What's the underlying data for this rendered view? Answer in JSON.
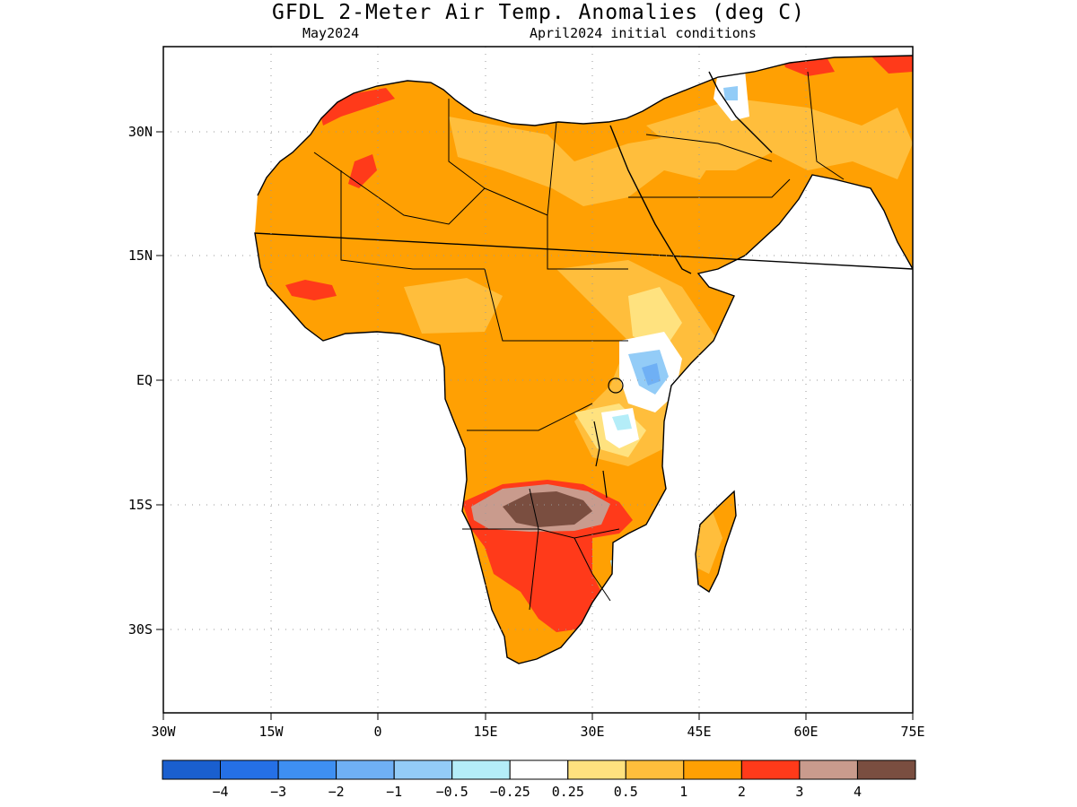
{
  "title": "GFDL 2-Meter Air Temp. Anomalies (deg C)",
  "subtitle_left": "May2024",
  "subtitle_right": "April2024 initial conditions",
  "axes": {
    "lon_labels": [
      "30W",
      "15W",
      "0",
      "15E",
      "30E",
      "45E",
      "60E",
      "75E"
    ],
    "lat_labels": [
      "30N",
      "15N",
      "EQ",
      "15S",
      "30S"
    ]
  },
  "colorbar": {
    "colors": [
      "#1a5fcf",
      "#2570e6",
      "#3e8ff2",
      "#6fb0f5",
      "#93ccf7",
      "#b4edf8",
      "#ffffff",
      "#ffe27f",
      "#ffbe3c",
      "#ffa003",
      "#ff3a1a",
      "#c99b8d",
      "#7a4e40"
    ],
    "labels": [
      "−4",
      "−3",
      "−2",
      "−1",
      "−0.5",
      "−0.25",
      "0.25",
      "0.5",
      "1",
      "2",
      "3",
      "4"
    ]
  },
  "map_colors": {
    "background": "#ffffff",
    "ocean": "#ffffff",
    "coast": "#000000"
  }
}
